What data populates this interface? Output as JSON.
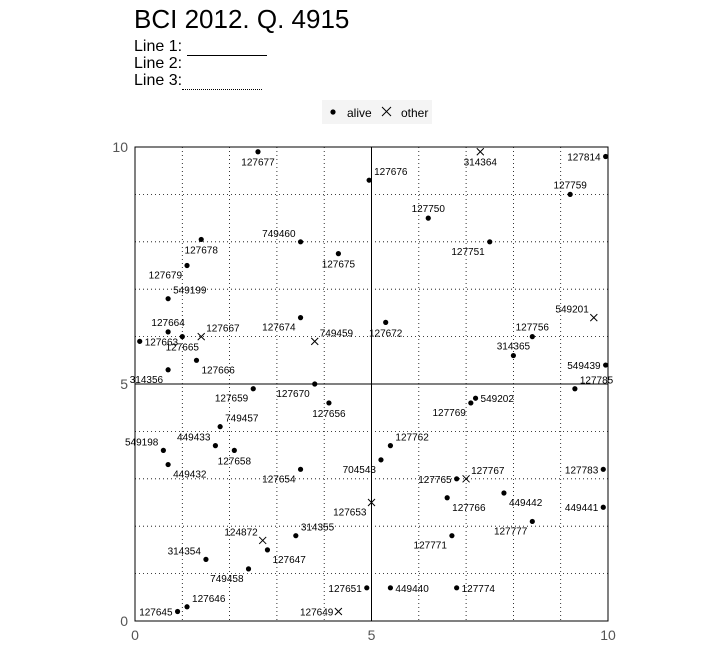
{
  "header": {
    "title": "BCI 2012. Q. 4915",
    "line1_label": "Line 1:",
    "line2_label": "Line 2:",
    "line3_label": "Line 3:"
  },
  "legend": {
    "alive": "alive",
    "other": "other"
  },
  "colors": {
    "frame": "#000000",
    "grid": "#000000",
    "point": "#000000"
  },
  "chart_data": {
    "type": "scatter",
    "title": "BCI 2012. Q. 4915",
    "xlabel": "",
    "ylabel": "",
    "xlim": [
      0,
      10
    ],
    "ylim": [
      0,
      10
    ],
    "xticks": [
      "0",
      "5",
      "10"
    ],
    "yticks": [
      "0",
      "5",
      "10"
    ],
    "grid": "dotted, every 1 unit; solid lines at 5",
    "legend_position": "top-center",
    "series": [
      {
        "name": "alive",
        "marker": "dot",
        "points": [
          {
            "id": "127677",
            "x": 2.6,
            "y": 9.9,
            "label_side": "below"
          },
          {
            "id": "127676",
            "x": 4.95,
            "y": 9.3,
            "label_side": "above-right"
          },
          {
            "id": "127814",
            "x": 9.95,
            "y": 9.8,
            "label_side": "left"
          },
          {
            "id": "127759",
            "x": 9.2,
            "y": 9.0,
            "label_side": "above"
          },
          {
            "id": "127750",
            "x": 6.2,
            "y": 8.5,
            "label_side": "above"
          },
          {
            "id": "749460",
            "x": 3.5,
            "y": 8.0,
            "label_side": "above-left"
          },
          {
            "id": "127678",
            "x": 1.4,
            "y": 8.05,
            "label_side": "below"
          },
          {
            "id": "127751",
            "x": 7.5,
            "y": 8.0,
            "label_side": "below-left"
          },
          {
            "id": "127675",
            "x": 4.3,
            "y": 7.75,
            "label_side": "below"
          },
          {
            "id": "127679",
            "x": 1.1,
            "y": 7.5,
            "label_side": "below-left"
          },
          {
            "id": "549199",
            "x": 0.7,
            "y": 6.8,
            "label_side": "above-right"
          },
          {
            "id": "127674",
            "x": 3.5,
            "y": 6.4,
            "label_side": "below-left"
          },
          {
            "id": "127672",
            "x": 5.3,
            "y": 6.3,
            "label_side": "below"
          },
          {
            "id": "127664",
            "x": 0.7,
            "y": 6.1,
            "label_side": "above"
          },
          {
            "id": "127663",
            "x": 0.1,
            "y": 5.9,
            "label_side": "right"
          },
          {
            "id": "127665",
            "x": 1.0,
            "y": 6.0,
            "label_side": "below"
          },
          {
            "id": "127756",
            "x": 8.4,
            "y": 6.0,
            "label_side": "above"
          },
          {
            "id": "314365",
            "x": 8.0,
            "y": 5.6,
            "label_side": "above"
          },
          {
            "id": "127666",
            "x": 1.3,
            "y": 5.5,
            "label_side": "below-right"
          },
          {
            "id": "314356",
            "x": 0.7,
            "y": 5.3,
            "label_side": "below-left"
          },
          {
            "id": "549439",
            "x": 9.95,
            "y": 5.4,
            "label_side": "left"
          },
          {
            "id": "127785",
            "x": 9.3,
            "y": 4.9,
            "label_side": "above-right"
          },
          {
            "id": "127670",
            "x": 3.8,
            "y": 5.0,
            "label_side": "below-left"
          },
          {
            "id": "127659",
            "x": 2.5,
            "y": 4.9,
            "label_side": "below-left"
          },
          {
            "id": "127656",
            "x": 4.1,
            "y": 4.6,
            "label_side": "below"
          },
          {
            "id": "549202",
            "x": 7.2,
            "y": 4.7,
            "label_side": "right"
          },
          {
            "id": "127769",
            "x": 7.1,
            "y": 4.6,
            "label_side": "below-left"
          },
          {
            "id": "749457",
            "x": 1.8,
            "y": 4.1,
            "label_side": "above-right"
          },
          {
            "id": "449433",
            "x": 1.7,
            "y": 3.7,
            "label_side": "above-left"
          },
          {
            "id": "127658",
            "x": 2.1,
            "y": 3.6,
            "label_side": "below"
          },
          {
            "id": "549198",
            "x": 0.6,
            "y": 3.6,
            "label_side": "above-left"
          },
          {
            "id": "449432",
            "x": 0.7,
            "y": 3.3,
            "label_side": "below-right"
          },
          {
            "id": "127762",
            "x": 5.4,
            "y": 3.7,
            "label_side": "above-right"
          },
          {
            "id": "704543",
            "x": 5.2,
            "y": 3.4,
            "label_side": "below-left"
          },
          {
            "id": "127654",
            "x": 3.5,
            "y": 3.2,
            "label_side": "below-left"
          },
          {
            "id": "127765",
            "x": 6.8,
            "y": 3.0,
            "label_side": "left"
          },
          {
            "id": "127783",
            "x": 9.9,
            "y": 3.2,
            "label_side": "left"
          },
          {
            "id": "127766",
            "x": 6.6,
            "y": 2.6,
            "label_side": "below-right"
          },
          {
            "id": "449442",
            "x": 7.8,
            "y": 2.7,
            "label_side": "below-right"
          },
          {
            "id": "449441",
            "x": 9.9,
            "y": 2.4,
            "label_side": "left"
          },
          {
            "id": "127777",
            "x": 8.4,
            "y": 2.1,
            "label_side": "below-left"
          },
          {
            "id": "127771",
            "x": 6.7,
            "y": 1.8,
            "label_side": "below-left"
          },
          {
            "id": "314355",
            "x": 3.4,
            "y": 1.8,
            "label_side": "above-right"
          },
          {
            "id": "127647",
            "x": 2.8,
            "y": 1.5,
            "label_side": "below-right"
          },
          {
            "id": "314354",
            "x": 1.5,
            "y": 1.3,
            "label_side": "above-left"
          },
          {
            "id": "749458",
            "x": 2.4,
            "y": 1.1,
            "label_side": "below-left"
          },
          {
            "id": "127646",
            "x": 1.1,
            "y": 0.3,
            "label_side": "above-right"
          },
          {
            "id": "127645",
            "x": 0.9,
            "y": 0.2,
            "label_side": "left"
          },
          {
            "id": "127651",
            "x": 4.9,
            "y": 0.7,
            "label_side": "left"
          },
          {
            "id": "449440",
            "x": 5.4,
            "y": 0.7,
            "label_side": "right"
          },
          {
            "id": "127774",
            "x": 6.8,
            "y": 0.7,
            "label_side": "right"
          }
        ]
      },
      {
        "name": "other",
        "marker": "x",
        "points": [
          {
            "id": "314364",
            "x": 7.3,
            "y": 9.9,
            "label_side": "below"
          },
          {
            "id": "549201",
            "x": 9.7,
            "y": 6.4,
            "label_side": "above-left"
          },
          {
            "id": "127667",
            "x": 1.4,
            "y": 6.0,
            "label_side": "above-right"
          },
          {
            "id": "749459",
            "x": 3.8,
            "y": 5.9,
            "label_side": "above-right"
          },
          {
            "id": "127767",
            "x": 7.0,
            "y": 3.0,
            "label_side": "above-right"
          },
          {
            "id": "127653",
            "x": 5.0,
            "y": 2.5,
            "label_side": "below-left"
          },
          {
            "id": "124872",
            "x": 2.7,
            "y": 1.7,
            "label_side": "above-left"
          },
          {
            "id": "127649",
            "x": 4.3,
            "y": 0.2,
            "label_side": "left"
          }
        ]
      }
    ]
  }
}
